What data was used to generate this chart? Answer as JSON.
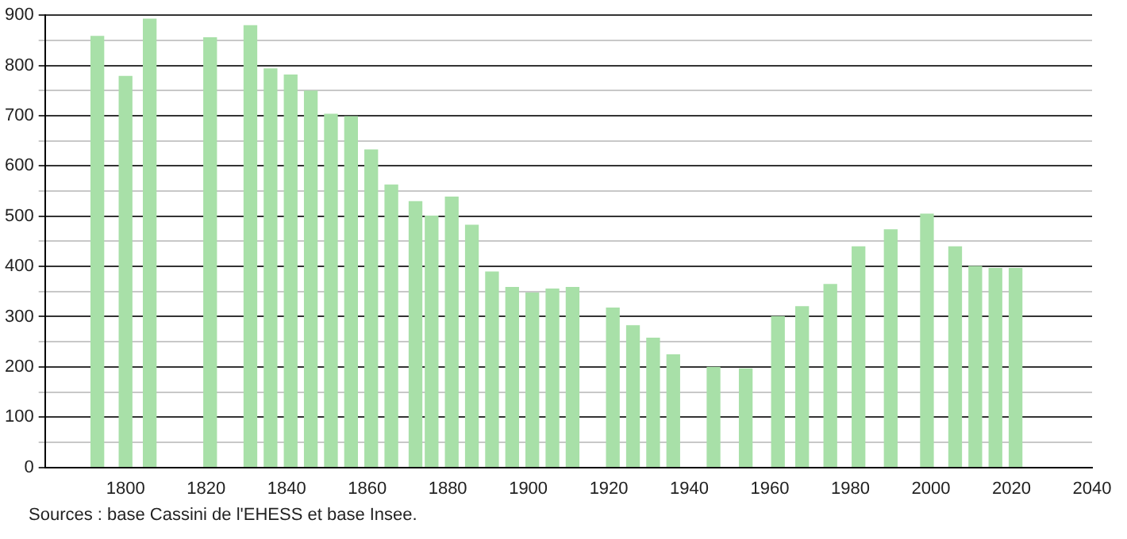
{
  "chart_data": {
    "type": "bar",
    "x": [
      1793,
      1800,
      1806,
      1821,
      1831,
      1836,
      1841,
      1846,
      1851,
      1856,
      1861,
      1866,
      1872,
      1876,
      1881,
      1886,
      1891,
      1896,
      1901,
      1906,
      1911,
      1921,
      1926,
      1931,
      1936,
      1946,
      1954,
      1962,
      1968,
      1975,
      1982,
      1990,
      1999,
      2006,
      2011,
      2016,
      2021
    ],
    "values": [
      858,
      778,
      892,
      855,
      879,
      793,
      781,
      749,
      703,
      698,
      632,
      562,
      529,
      500,
      538,
      482,
      389,
      358,
      347,
      355,
      358,
      317,
      282,
      257,
      224,
      199,
      196,
      300,
      320,
      364,
      439,
      473,
      504,
      439,
      400,
      396,
      396
    ],
    "color": "#a8e0a8",
    "xlim": [
      1780,
      2040
    ],
    "xticks": [
      1800,
      1820,
      1840,
      1860,
      1880,
      1900,
      1920,
      1940,
      1960,
      1980,
      2000,
      2020,
      2040
    ],
    "ylim": [
      0,
      900
    ],
    "yticks": [
      0,
      {
        "value": 50,
        "label": null
      },
      100,
      {
        "value": 150,
        "label": null
      },
      200,
      {
        "value": 250,
        "label": null
      },
      300,
      {
        "value": 350,
        "label": null
      },
      400,
      {
        "value": 450,
        "label": null
      },
      500,
      {
        "value": 550,
        "label": null
      },
      600,
      {
        "value": 650,
        "label": null
      },
      700,
      {
        "value": 750,
        "label": null
      },
      800,
      {
        "value": 850,
        "label": null
      },
      900
    ],
    "grid": "y",
    "annotations": [
      "Sources : base Cassini de l'EHESS et base Insee."
    ]
  }
}
